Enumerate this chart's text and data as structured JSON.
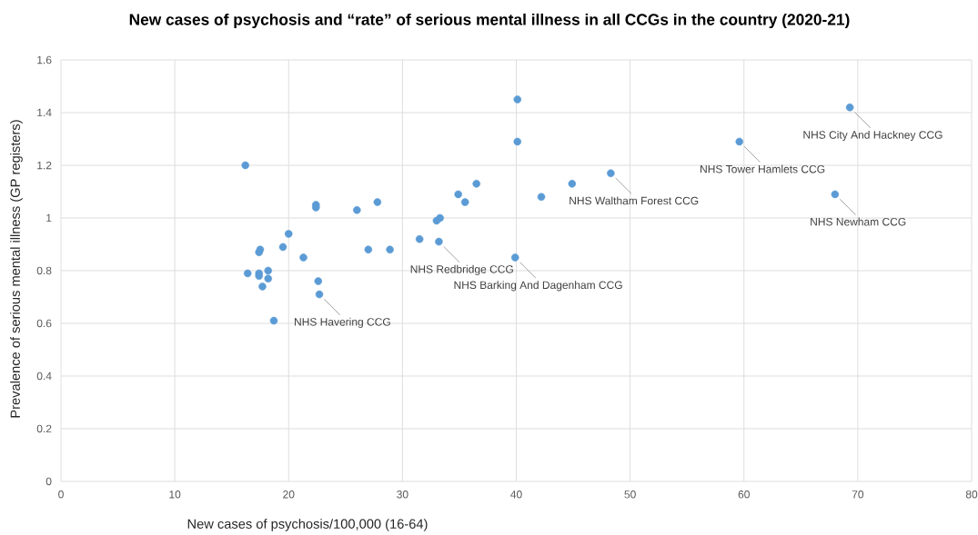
{
  "chart_data": {
    "type": "scatter",
    "title": "New cases of psychosis and “rate” of serious mental illness in all CCGs in the country (2020-21)",
    "xlabel": "New cases of psychosis/100,000 (16-64)",
    "ylabel": "Prevalence of serious mental illness (GP registers)",
    "xlim": [
      0,
      80
    ],
    "xticks": [
      0,
      10,
      20,
      30,
      40,
      50,
      60,
      70,
      80
    ],
    "ylim": [
      0,
      1.6
    ],
    "yticks": [
      {
        "value": 0,
        "label": "0"
      },
      {
        "value": 0.2,
        "label": "0.2"
      },
      {
        "value": 0.4,
        "label": "0.4"
      },
      {
        "value": 0.6,
        "label": "0.6"
      },
      {
        "value": 0.8,
        "label": "0.8"
      },
      {
        "value": 1,
        "label": "1"
      },
      {
        "value": 1.2,
        "label": "1.2"
      },
      {
        "value": 1.4,
        "label": "1.4"
      },
      {
        "value": 1.6,
        "label": "1.6"
      }
    ],
    "grid": true,
    "marker": "circle",
    "series": [
      {
        "color": "#5b9bd5",
        "x": [
          16.2,
          22.4,
          22.4,
          26.0,
          27.8,
          34.9,
          36.5,
          35.5,
          42.2,
          33.0,
          33.3,
          20.0,
          19.5,
          17.5,
          17.4,
          21.3,
          27.0,
          28.9,
          31.5,
          33.2,
          39.9,
          16.4,
          17.4,
          17.4,
          18.2,
          18.2,
          17.7,
          22.6,
          22.7,
          18.7,
          40.1,
          40.1,
          44.9,
          48.3,
          69.3,
          59.6,
          68.0
        ],
        "values": [
          1.2,
          1.05,
          1.04,
          1.03,
          1.06,
          1.09,
          1.13,
          1.06,
          1.08,
          0.99,
          1.0,
          0.94,
          0.89,
          0.88,
          0.87,
          0.85,
          0.88,
          0.88,
          0.92,
          0.91,
          0.85,
          0.79,
          0.79,
          0.78,
          0.8,
          0.77,
          0.74,
          0.76,
          0.71,
          0.61,
          1.45,
          1.29,
          1.13,
          1.17,
          1.42,
          1.29,
          1.09
        ]
      }
    ],
    "annotations": [
      {
        "text": "NHS Havering CCG",
        "x": 22.7,
        "y": 0.71
      },
      {
        "text": "NHS Redbridge CCG",
        "x": 33.2,
        "y": 0.91
      },
      {
        "text": "NHS Barking And Dagenham CCG",
        "x": 39.9,
        "y": 0.85
      },
      {
        "text": "NHS Waltham Forest CCG",
        "x": 48.3,
        "y": 1.17
      },
      {
        "text": "NHS Tower Hamlets CCG",
        "x": 59.6,
        "y": 1.29
      },
      {
        "text": "NHS City And Hackney CCG",
        "x": 69.3,
        "y": 1.42
      },
      {
        "text": "NHS Newham CCG",
        "x": 68.0,
        "y": 1.09
      }
    ]
  }
}
